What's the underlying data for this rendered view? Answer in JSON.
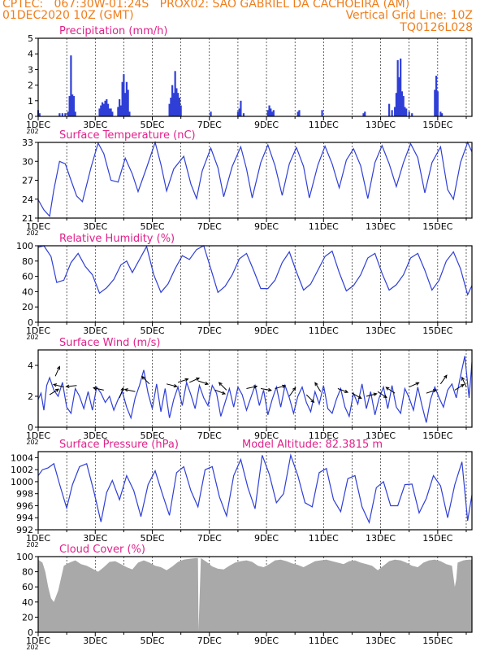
{
  "header": {
    "line1_left": "CPTEC:   067:30W-01:24S   PROX02: SAO GABRIEL DA CACHOEIRA (AM)",
    "line2_left": "01DEC2020 10Z (GMT)",
    "line2_right": "Vertical Grid Line: 10Z",
    "line3_right": "TQ0126L028"
  },
  "colors": {
    "header": "#f07d1a",
    "title": "#e0208a",
    "line": "#2f3fd6",
    "cloud": "#a9a9a9",
    "arrow": "#000000"
  },
  "x_axis": {
    "tick_labels": [
      "1DEC",
      "3DEC",
      "5DEC",
      "7DEC",
      "9DEC",
      "11DEC",
      "13DEC",
      "15DEC"
    ],
    "tick_days": [
      1,
      3,
      5,
      7,
      9,
      11,
      13,
      15
    ],
    "xlim": [
      1,
      16.2
    ],
    "minor_label": "202"
  },
  "chart_data": [
    {
      "id": "precip",
      "type": "bar",
      "title": "Precipitation (mm/h)",
      "ylim": [
        0,
        5
      ],
      "yticks": [
        0,
        1,
        2,
        3,
        4,
        5
      ],
      "x": [
        1.0,
        1.05,
        1.75,
        1.85,
        1.95,
        2.05,
        2.1,
        2.15,
        2.2,
        2.25,
        2.3,
        3.15,
        3.2,
        3.25,
        3.3,
        3.35,
        3.4,
        3.45,
        3.5,
        3.55,
        3.6,
        3.8,
        3.85,
        3.9,
        3.95,
        4.0,
        4.05,
        4.1,
        4.15,
        4.2,
        5.6,
        5.65,
        5.7,
        5.75,
        5.8,
        5.85,
        5.9,
        5.95,
        6.0,
        7.05,
        8.0,
        8.05,
        8.1,
        8.2,
        9.05,
        9.1,
        9.15,
        9.2,
        9.25,
        10.1,
        10.15,
        10.95,
        12.4,
        12.45,
        13.3,
        13.4,
        13.5,
        13.55,
        13.6,
        13.65,
        13.7,
        13.75,
        13.8,
        13.85,
        13.9,
        14.0,
        14.1,
        14.9,
        14.95,
        15.0,
        15.1,
        15.15
      ],
      "values": [
        0.4,
        0.2,
        0.2,
        0.2,
        0.2,
        0.3,
        1.3,
        3.9,
        1.4,
        1.3,
        0.3,
        0.5,
        0.7,
        0.9,
        0.8,
        1.0,
        1.1,
        0.8,
        0.5,
        0.5,
        0.3,
        0.6,
        1.1,
        0.7,
        2.2,
        2.7,
        1.5,
        2.2,
        1.7,
        0.3,
        0.8,
        1.2,
        2.0,
        1.5,
        2.9,
        1.8,
        1.5,
        1.2,
        0.7,
        0.3,
        0.3,
        0.5,
        1.0,
        0.2,
        0.4,
        0.7,
        0.5,
        0.3,
        0.4,
        0.3,
        0.4,
        0.4,
        0.2,
        0.3,
        0.8,
        0.4,
        0.6,
        1.5,
        3.6,
        2.5,
        3.7,
        1.6,
        1.3,
        0.6,
        0.5,
        0.3,
        0.2,
        1.7,
        2.6,
        1.6,
        0.3,
        0.2
      ]
    },
    {
      "id": "temp",
      "type": "line",
      "title": "Surface Temperature (nC)",
      "ylim": [
        21,
        33
      ],
      "yticks": [
        21,
        24,
        27,
        30,
        33
      ],
      "x": [
        1.0,
        1.2,
        1.4,
        1.55,
        1.75,
        1.95,
        2.15,
        2.35,
        2.55,
        2.85,
        3.1,
        3.3,
        3.55,
        3.8,
        4.05,
        4.3,
        4.5,
        4.8,
        5.1,
        5.3,
        5.5,
        5.75,
        6.1,
        6.35,
        6.55,
        6.75,
        7.05,
        7.3,
        7.5,
        7.8,
        8.1,
        8.3,
        8.5,
        8.8,
        9.05,
        9.3,
        9.55,
        9.8,
        10.05,
        10.3,
        10.5,
        10.8,
        11.05,
        11.3,
        11.55,
        11.8,
        12.05,
        12.3,
        12.55,
        12.8,
        13.05,
        13.3,
        13.55,
        13.8,
        14.05,
        14.3,
        14.55,
        14.8,
        15.1,
        15.35,
        15.55,
        15.8,
        16.05,
        16.2
      ],
      "values": [
        23.9,
        22.3,
        21.3,
        25.5,
        30.0,
        29.6,
        27.0,
        24.5,
        23.6,
        29.0,
        32.9,
        31.2,
        27.0,
        26.7,
        30.5,
        28.0,
        25.2,
        29.0,
        33.0,
        29.5,
        25.3,
        28.8,
        30.8,
        26.4,
        24.1,
        28.5,
        32.1,
        29.0,
        24.4,
        29.2,
        32.3,
        28.8,
        24.2,
        29.8,
        32.6,
        29.3,
        24.6,
        29.6,
        32.2,
        29.2,
        24.2,
        29.4,
        32.4,
        29.6,
        25.8,
        30.2,
        32.0,
        29.3,
        24.1,
        29.8,
        32.5,
        29.6,
        26.0,
        29.8,
        32.8,
        30.6,
        25.0,
        29.8,
        32.3,
        25.5,
        24.0,
        29.8,
        33.0,
        31.5
      ]
    },
    {
      "id": "rh",
      "type": "line",
      "title": "Relative Humidity (%)",
      "ylim": [
        0,
        100
      ],
      "yticks": [
        0,
        20,
        40,
        60,
        80,
        100
      ],
      "x": [
        1.0,
        1.2,
        1.45,
        1.65,
        1.9,
        2.15,
        2.4,
        2.65,
        2.9,
        3.15,
        3.4,
        3.65,
        3.9,
        4.1,
        4.3,
        4.55,
        4.8,
        5.05,
        5.3,
        5.55,
        5.8,
        6.05,
        6.3,
        6.55,
        6.8,
        7.05,
        7.3,
        7.55,
        7.8,
        8.05,
        8.3,
        8.55,
        8.8,
        9.05,
        9.3,
        9.55,
        9.8,
        10.05,
        10.3,
        10.55,
        10.8,
        11.05,
        11.3,
        11.55,
        11.8,
        12.05,
        12.3,
        12.55,
        12.8,
        13.05,
        13.3,
        13.55,
        13.8,
        14.05,
        14.3,
        14.55,
        14.8,
        15.05,
        15.3,
        15.55,
        15.8,
        16.05,
        16.2
      ],
      "values": [
        98,
        100,
        86,
        52,
        55,
        78,
        90,
        73,
        62,
        38,
        45,
        56,
        75,
        80,
        65,
        82,
        99,
        62,
        39,
        50,
        70,
        87,
        82,
        95,
        100,
        70,
        39,
        47,
        62,
        83,
        90,
        68,
        44,
        44,
        55,
        78,
        92,
        66,
        42,
        50,
        68,
        86,
        93,
        65,
        41,
        48,
        62,
        84,
        90,
        64,
        42,
        49,
        62,
        84,
        90,
        68,
        42,
        55,
        80,
        92,
        70,
        36,
        48
      ]
    },
    {
      "id": "wind",
      "type": "line",
      "title": "Surface Wind (m/s)",
      "ylim": [
        0,
        5
      ],
      "yticks": [
        0,
        2,
        4
      ],
      "x": [
        1.0,
        1.1,
        1.2,
        1.3,
        1.4,
        1.55,
        1.7,
        1.85,
        2.0,
        2.15,
        2.3,
        2.45,
        2.6,
        2.75,
        2.9,
        3.05,
        3.2,
        3.35,
        3.5,
        3.65,
        3.8,
        3.95,
        4.1,
        4.25,
        4.4,
        4.55,
        4.7,
        4.85,
        5.0,
        5.15,
        5.3,
        5.45,
        5.6,
        5.75,
        5.9,
        6.05,
        6.2,
        6.35,
        6.5,
        6.65,
        6.8,
        6.95,
        7.1,
        7.25,
        7.4,
        7.55,
        7.7,
        7.85,
        8.0,
        8.15,
        8.3,
        8.45,
        8.6,
        8.75,
        8.9,
        9.05,
        9.2,
        9.35,
        9.5,
        9.65,
        9.8,
        9.95,
        10.1,
        10.25,
        10.4,
        10.55,
        10.7,
        10.85,
        11.0,
        11.15,
        11.3,
        11.45,
        11.6,
        11.75,
        11.9,
        12.05,
        12.2,
        12.35,
        12.5,
        12.65,
        12.8,
        12.95,
        13.1,
        13.25,
        13.4,
        13.55,
        13.7,
        13.85,
        14.0,
        14.15,
        14.3,
        14.45,
        14.6,
        14.75,
        14.9,
        15.05,
        15.2,
        15.35,
        15.5,
        15.65,
        15.8,
        15.95,
        16.1,
        16.2
      ],
      "values": [
        1.8,
        2.2,
        1.1,
        2.7,
        3.2,
        2.4,
        2.0,
        2.9,
        1.3,
        0.9,
        2.5,
        2.0,
        1.2,
        2.3,
        1.1,
        2.6,
        2.2,
        1.6,
        2.0,
        1.1,
        1.8,
        2.3,
        1.3,
        0.6,
        1.9,
        2.7,
        3.7,
        2.2,
        1.2,
        2.8,
        1.0,
        2.5,
        0.6,
        1.8,
        2.6,
        1.4,
        2.9,
        2.1,
        1.2,
        2.7,
        1.9,
        1.4,
        2.7,
        2.2,
        0.7,
        1.6,
        2.5,
        1.3,
        2.6,
        2.1,
        1.1,
        1.9,
        2.7,
        1.4,
        2.4,
        0.8,
        1.8,
        2.6,
        1.3,
        2.7,
        1.9,
        0.9,
        2.0,
        2.6,
        1.6,
        1.0,
        2.3,
        1.5,
        2.7,
        1.2,
        0.9,
        1.8,
        2.5,
        1.3,
        0.7,
        2.2,
        1.5,
        2.8,
        1.2,
        2.3,
        0.8,
        1.9,
        2.6,
        1.2,
        2.7,
        1.3,
        0.9,
        2.5,
        1.9,
        1.1,
        2.6,
        1.4,
        0.3,
        1.8,
        2.6,
        1.9,
        1.3,
        2.4,
        2.8,
        1.9,
        3.3,
        4.6,
        1.9,
        4.2
      ],
      "arrows": {
        "x": [
          1.4,
          1.6,
          1.9,
          2.35,
          3.3,
          3.85,
          4.4,
          4.9,
          5.5,
          5.9,
          6.3,
          6.6,
          7.2,
          7.6,
          8.3,
          8.8,
          9.3,
          9.8,
          10.4,
          10.9,
          11.5,
          12.0,
          12.5,
          12.9,
          13.5,
          14.0,
          14.6,
          15.1,
          15.6,
          16.0
        ],
        "y": [
          2.1,
          3.3,
          2.6,
          2.7,
          2.4,
          1.9,
          2.3,
          2.8,
          2.8,
          2.9,
          2.9,
          3.0,
          2.4,
          2.4,
          2.5,
          2.5,
          2.5,
          2.0,
          2.1,
          2.3,
          2.5,
          2.2,
          2.0,
          2.3,
          2.2,
          2.6,
          2.2,
          2.8,
          2.4,
          2.6
        ],
        "u": [
          0.8,
          0.4,
          -0.8,
          -0.9,
          -0.9,
          0.3,
          -0.9,
          -0.6,
          0.8,
          0.9,
          0.9,
          0.9,
          0.8,
          -0.4,
          0.9,
          0.6,
          0.7,
          0.5,
          0.7,
          -0.5,
          0.8,
          0.9,
          0.8,
          0.6,
          -0.6,
          0.9,
          0.9,
          0.5,
          0.8,
          -0.4
        ],
        "v": [
          0.5,
          0.9,
          0.2,
          -0.1,
          0.2,
          0.8,
          0.2,
          0.6,
          -0.2,
          0.3,
          0.4,
          -0.3,
          -0.3,
          0.4,
          0.2,
          -0.1,
          0.2,
          0.7,
          -0.7,
          0.8,
          -0.3,
          -0.5,
          0.2,
          -0.4,
          0.4,
          0.4,
          0.3,
          0.7,
          0.5,
          0.9
        ]
      }
    },
    {
      "id": "press",
      "type": "line",
      "title": "Surface Pressure (hPa)",
      "annotation": "Model Altitude: 82.3815 m",
      "ylim": [
        992,
        1005
      ],
      "yticks": [
        992,
        994,
        996,
        998,
        1000,
        1002,
        1004
      ],
      "x": [
        1.0,
        1.15,
        1.35,
        1.55,
        1.75,
        2.0,
        2.2,
        2.45,
        2.7,
        2.95,
        3.2,
        3.4,
        3.6,
        3.85,
        4.1,
        4.35,
        4.6,
        4.85,
        5.1,
        5.35,
        5.6,
        5.85,
        6.1,
        6.35,
        6.6,
        6.85,
        7.1,
        7.35,
        7.6,
        7.85,
        8.1,
        8.35,
        8.6,
        8.85,
        9.1,
        9.35,
        9.6,
        9.85,
        10.1,
        10.35,
        10.6,
        10.85,
        11.1,
        11.35,
        11.6,
        11.85,
        12.1,
        12.35,
        12.6,
        12.85,
        13.1,
        13.35,
        13.6,
        13.85,
        14.1,
        14.35,
        14.6,
        14.85,
        15.1,
        15.35,
        15.6,
        15.85,
        16.05,
        16.2
      ],
      "values": [
        1001.0,
        1002.0,
        1002.3,
        1003.0,
        999.6,
        995.6,
        999.5,
        1002.5,
        1003.0,
        998.4,
        993.3,
        998.2,
        1000.2,
        997.0,
        1001.0,
        998.5,
        994.2,
        999.5,
        1001.8,
        998.0,
        994.4,
        1001.5,
        1002.5,
        998.5,
        995.8,
        1002.0,
        1002.5,
        997.5,
        994.3,
        1001.0,
        1003.7,
        999.0,
        995.5,
        1004.4,
        1001.2,
        996.5,
        998.0,
        1004.4,
        1001.0,
        996.5,
        995.8,
        1001.5,
        1002.2,
        997.0,
        995.0,
        1000.5,
        1001.0,
        995.8,
        993.2,
        999.0,
        1000.0,
        996.0,
        996.0,
        999.5,
        999.6,
        994.8,
        997.2,
        1001.0,
        999.3,
        994.0,
        999.5,
        1003.3,
        993.5,
        997.8
      ]
    },
    {
      "id": "cloud",
      "type": "area",
      "title": "Cloud Cover (%)",
      "ylim": [
        0,
        100
      ],
      "yticks": [
        0,
        20,
        40,
        60,
        80,
        100
      ],
      "x": [
        1.0,
        1.15,
        1.25,
        1.35,
        1.45,
        1.55,
        1.7,
        1.9,
        2.1,
        2.3,
        2.5,
        2.7,
        2.9,
        3.1,
        3.3,
        3.5,
        3.7,
        3.9,
        4.1,
        4.3,
        4.5,
        4.7,
        4.9,
        5.1,
        5.3,
        5.5,
        5.7,
        5.9,
        6.1,
        6.3,
        6.5,
        6.6,
        6.62,
        6.7,
        6.9,
        7.1,
        7.3,
        7.5,
        7.7,
        7.9,
        8.1,
        8.3,
        8.5,
        8.7,
        8.9,
        9.1,
        9.3,
        9.5,
        9.7,
        9.9,
        10.1,
        10.3,
        10.5,
        10.7,
        10.9,
        11.1,
        11.3,
        11.5,
        11.7,
        11.9,
        12.1,
        12.3,
        12.5,
        12.7,
        12.9,
        13.1,
        13.3,
        13.5,
        13.7,
        13.9,
        14.1,
        14.3,
        14.5,
        14.7,
        14.9,
        15.1,
        15.3,
        15.5,
        15.6,
        15.65,
        15.7,
        15.9,
        16.1,
        16.2
      ],
      "values": [
        96,
        92,
        80,
        60,
        45,
        40,
        55,
        88,
        92,
        95,
        90,
        88,
        84,
        80,
        86,
        93,
        94,
        90,
        86,
        83,
        92,
        95,
        92,
        88,
        86,
        82,
        87,
        93,
        96,
        97,
        98,
        98,
        2,
        98,
        93,
        87,
        84,
        83,
        88,
        92,
        94,
        95,
        93,
        88,
        86,
        90,
        95,
        96,
        94,
        91,
        89,
        86,
        90,
        94,
        95,
        96,
        94,
        92,
        90,
        94,
        95,
        92,
        90,
        88,
        82,
        88,
        94,
        96,
        95,
        92,
        88,
        86,
        92,
        95,
        96,
        94,
        90,
        88,
        60,
        70,
        92,
        95,
        96,
        96
      ]
    }
  ]
}
